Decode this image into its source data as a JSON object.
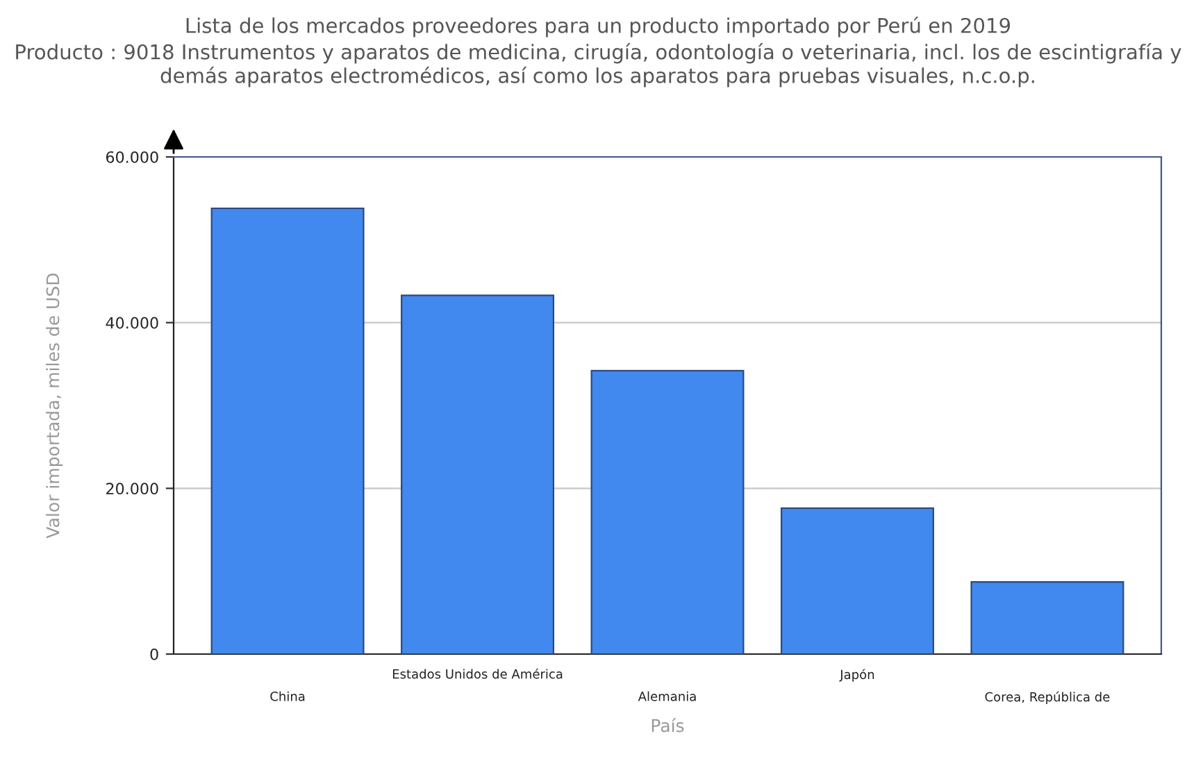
{
  "chart_data": {
    "type": "bar",
    "title": "Lista de los mercados proveedores para un producto importado por Perú en 2019",
    "subtitle": "Producto : 9018 Instrumentos y aparatos de medicina, cirugía, odontología o veterinaria, incl. los de escintigrafía y demás aparatos electromédicos, así como los aparatos para pruebas visuales, n.c.o.p.",
    "xlabel": "País",
    "ylabel": "Valor importada, miles de USD",
    "categories": [
      "China",
      "Estados Unidos de América",
      "Alemania",
      "Japón",
      "Corea, República de"
    ],
    "values": [
      53800,
      43300,
      34200,
      17600,
      8700
    ],
    "color": "#4189ee",
    "ylim": [
      0,
      60000
    ],
    "yticks": [
      {
        "value": 0,
        "label": "0"
      },
      {
        "value": 20000,
        "label": "20.000"
      },
      {
        "value": 40000,
        "label": "40.000"
      },
      {
        "value": 60000,
        "label": "60.000"
      }
    ],
    "grid": "y"
  }
}
